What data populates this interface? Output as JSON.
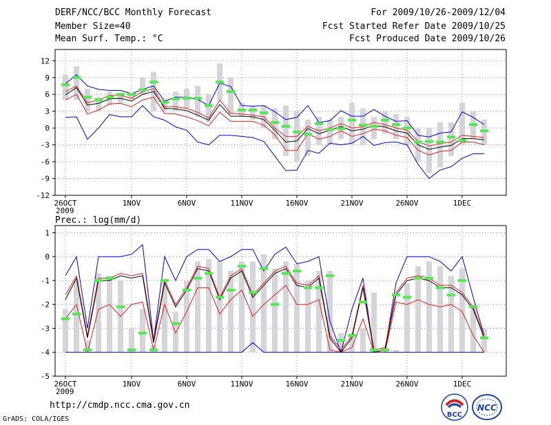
{
  "header": {
    "title": "DERF/NCC/BCC Monthly Forecast",
    "member_size": "Member Size=40",
    "variable": "Mean Surf. Temp.: °C",
    "period": "For 2009/10/26-2009/12/04",
    "started": "Fcst Started Refer Date 2009/10/25",
    "produced": "Fcst Produced Date 2009/10/26"
  },
  "footer": {
    "url": "http://cmdp.ncc.cma.gov.cn",
    "grads": "GrADS: COLA/IGES",
    "logo_bcc": "BCC",
    "logo_ncc": "NCC"
  },
  "colors": {
    "box": "#d3d5d8",
    "green": "#55e855",
    "mean": "#000000",
    "spread_inner": "#e02020",
    "spread_outer": "#0000cc",
    "grid": "#888888"
  },
  "chart_data": [
    {
      "type": "line",
      "title": "Mean Surf. Temp.: °C",
      "ylim": [
        -12,
        14
      ],
      "yticks": [
        12,
        9,
        6,
        3,
        0,
        -3,
        -6,
        -9,
        -12
      ],
      "xticks": [
        {
          "day": 0,
          "label": "26OCT",
          "sub": "2009"
        },
        {
          "day": 6,
          "label": "1NOV"
        },
        {
          "day": 11,
          "label": "6NOV"
        },
        {
          "day": 16,
          "label": "11NOV"
        },
        {
          "day": 21,
          "label": "16NOV"
        },
        {
          "day": 26,
          "label": "21NOV"
        },
        {
          "day": 31,
          "label": "26NOV"
        },
        {
          "day": 36,
          "label": "1DEC"
        }
      ],
      "series": [
        {
          "name": "box_high",
          "values": [
            9.5,
            11,
            7,
            5.5,
            6.5,
            6,
            6,
            9,
            10,
            5,
            6.5,
            7,
            7.5,
            6,
            11.5,
            9,
            4.5,
            4,
            4,
            3.5,
            4,
            3,
            1.5,
            2,
            1.5,
            2,
            4.5,
            3.5,
            2,
            3,
            2.5,
            2,
            0,
            0,
            1,
            1,
            4.5,
            3,
            1.5
          ]
        },
        {
          "name": "box_low",
          "values": [
            5,
            5,
            3,
            3,
            4,
            4.5,
            5,
            6,
            3,
            3,
            3,
            3.5,
            2,
            1,
            5,
            2.5,
            2,
            1.5,
            0,
            -2,
            -5,
            -6,
            -5,
            -3,
            -3,
            -2,
            -3,
            -3,
            -2,
            -1,
            -2,
            -3,
            -6,
            -8,
            -7,
            -5,
            -3,
            -2,
            -3
          ]
        },
        {
          "name": "ensemble_mean_green",
          "values": [
            7.7,
            9,
            5.5,
            5,
            5.5,
            6,
            6,
            6.8,
            8.2,
            4.6,
            5.2,
            5.3,
            5.3,
            4,
            8.2,
            6.5,
            3.2,
            3.2,
            2.7,
            1,
            0.3,
            -0.7,
            -1.1,
            0.8,
            -0.3,
            -0.1,
            1.4,
            0.5,
            0.3,
            1.4,
            0.6,
            0,
            -2.5,
            -2.4,
            -2.5,
            -1.6,
            -2.2,
            0.6,
            -0.5
          ]
        },
        {
          "name": "mean_black",
          "values": [
            5.9,
            7.2,
            4.1,
            4.4,
            5.2,
            5.3,
            4.8,
            6,
            6.5,
            3.5,
            3.4,
            3.1,
            2.3,
            1.4,
            4.2,
            2.1,
            2.1,
            2,
            1.5,
            -0.4,
            -2.5,
            -2.3,
            -0.1,
            -1,
            -0.4,
            0.3,
            -0.5,
            -0.2,
            0.5,
            0.2,
            -0.5,
            -0.9,
            -3,
            -3.8,
            -3.4,
            -3.1,
            -1.9,
            -1.9,
            -2.1
          ]
        },
        {
          "name": "inner_high_red",
          "values": [
            6.5,
            7.5,
            4.5,
            5,
            5.8,
            5.8,
            5.3,
            6.5,
            7,
            3.8,
            3.8,
            3.5,
            2.8,
            1.8,
            5,
            2.6,
            2.5,
            2.3,
            2,
            0,
            -1.5,
            -1.5,
            0.3,
            -0.5,
            0,
            0.8,
            0,
            0.2,
            1,
            0.6,
            0,
            -0.4,
            -2.4,
            -3.2,
            -2.8,
            -2.5,
            -1.3,
            -1.5,
            -1.7
          ]
        },
        {
          "name": "inner_low_red",
          "values": [
            5,
            6,
            2.5,
            3.2,
            4.3,
            4.4,
            3.8,
            5,
            5.5,
            2.6,
            2.5,
            2,
            1.3,
            0.4,
            2.8,
            1.2,
            1.2,
            1.2,
            0.5,
            -1.2,
            -4,
            -4,
            -1,
            -2,
            -1.5,
            -0.5,
            -1.5,
            -1,
            -0.2,
            -0.5,
            -1.3,
            -1.7,
            -4,
            -4.8,
            -4.2,
            -4,
            -2.5,
            -2.5,
            -3
          ]
        },
        {
          "name": "outer_high_blue",
          "values": [
            7.9,
            9.5,
            7.5,
            6.9,
            6.7,
            6.7,
            6.1,
            6.9,
            7.5,
            4.8,
            5.5,
            5.5,
            5.1,
            4,
            8,
            7.4,
            4,
            3.9,
            4,
            2.9,
            1.5,
            1.9,
            4,
            1,
            1.3,
            3.1,
            2.1,
            2.1,
            3.3,
            2.1,
            1.2,
            1.3,
            -1.3,
            -1.6,
            -0.9,
            -0.7,
            2.9,
            1.9,
            0.6
          ]
        },
        {
          "name": "outer_low_blue",
          "values": [
            1.9,
            2,
            -2,
            0,
            2.4,
            2,
            2,
            4,
            2,
            1.4,
            0.2,
            -0.4,
            -2.5,
            -3,
            -1.3,
            -1.3,
            -1.5,
            -1.7,
            -2.4,
            -5,
            -7.6,
            -7.5,
            -4,
            -4.5,
            -2.7,
            -3,
            -2.7,
            -1.5,
            -3.1,
            -2.6,
            -2.5,
            -3,
            -6.5,
            -9,
            -7.5,
            -6.9,
            -5.4,
            -4.6,
            -4.6
          ]
        }
      ]
    },
    {
      "type": "line",
      "title": "Prec.: log(mm/d)",
      "ylim": [
        -5,
        1.3
      ],
      "yticks": [
        1,
        0,
        -1,
        -2,
        -3,
        -4,
        -5
      ],
      "xticks": [
        {
          "day": 0,
          "label": "26OCT",
          "sub": "2009"
        },
        {
          "day": 6,
          "label": "1NOV"
        },
        {
          "day": 11,
          "label": "6NOV"
        },
        {
          "day": 16,
          "label": "11NOV"
        },
        {
          "day": 21,
          "label": "16NOV"
        },
        {
          "day": 26,
          "label": "21NOV"
        },
        {
          "day": 31,
          "label": "26NOV"
        },
        {
          "day": 36,
          "label": "1DEC"
        }
      ],
      "series": [
        {
          "name": "box_high",
          "values": [
            -2.2,
            -1,
            -3.5,
            -0.7,
            -0.8,
            -1,
            -3,
            -2.2,
            -3.7,
            -1,
            -2.3,
            -1,
            -0.2,
            -0.1,
            -0.2,
            -0.6,
            -0.2,
            -0.2,
            0.1,
            -0.5,
            -0.2,
            -0.3,
            -1,
            -0.6,
            -0.6,
            -3.2,
            -3.2,
            -3,
            -1.5,
            -3.9,
            -3.9,
            -1.1,
            -0.4,
            -0.2,
            -0.4,
            -0.8,
            -0.5,
            -2,
            -3
          ]
        },
        {
          "name": "box_low",
          "values": [
            -4,
            -4,
            -4,
            -4,
            -4,
            -4,
            -4,
            -4,
            -4,
            -4,
            -4,
            -4,
            -4,
            -4,
            -4,
            -4,
            -4,
            -4,
            -4,
            -4,
            -4,
            -4,
            -4,
            -4,
            -4,
            -4,
            -4,
            -4,
            -4,
            -4,
            -4,
            -4,
            -4,
            -4,
            -4,
            -4,
            -4,
            -4,
            -4
          ]
        },
        {
          "name": "ensemble_mean_green",
          "values": [
            -2.6,
            -2.4,
            -3.9,
            -1,
            -0.9,
            -2.1,
            -3.9,
            -3.2,
            -3.9,
            -1,
            -2.8,
            -1.4,
            -0.9,
            -0.7,
            -1.7,
            -1.4,
            -0.4,
            -1.5,
            -0.5,
            -2,
            -0.7,
            -0.6,
            -1.3,
            -1.3,
            -0.8,
            -3.5,
            -3.3,
            -1.9,
            -3.9,
            -3.9,
            -1.6,
            -1.7,
            -0.9,
            -0.9,
            -1.3,
            -1.6,
            -1,
            -2.1,
            -3.4
          ]
        },
        {
          "name": "mean_black",
          "values": [
            -1.8,
            -0.9,
            -3.4,
            -1,
            -1,
            -0.8,
            -0.9,
            -0.8,
            -3.6,
            -1.1,
            -2.1,
            -1.4,
            -0.5,
            -0.6,
            -1.8,
            -0.9,
            -0.6,
            -1.7,
            -1.2,
            -0.7,
            -0.5,
            -1.2,
            -1.3,
            -0.9,
            -3.4,
            -4,
            -3.4,
            -1.3,
            -4,
            -3.9,
            -1.6,
            -1,
            -0.9,
            -1,
            -1.3,
            -1.3,
            -1.6,
            -2.2,
            -3.4
          ]
        },
        {
          "name": "inner_high_red",
          "values": [
            -1.6,
            -0.8,
            -3.3,
            -0.9,
            -0.9,
            -0.7,
            -0.8,
            -0.7,
            -3.5,
            -1,
            -2,
            -1.3,
            -0.4,
            -0.5,
            -1.7,
            -0.8,
            -0.5,
            -1.6,
            -1.1,
            -0.6,
            -0.4,
            -1.1,
            -1.2,
            -0.8,
            -3.3,
            -3.9,
            -3.3,
            -1.2,
            -3.9,
            -3.8,
            -1.5,
            -0.9,
            -0.8,
            -0.9,
            -1.2,
            -1.2,
            -1.5,
            -2.1,
            -3.3
          ]
        },
        {
          "name": "inner_low_red",
          "values": [
            -2.6,
            -2,
            -4,
            -2.2,
            -2,
            -2.5,
            -2,
            -1.9,
            -3.9,
            -2,
            -3.2,
            -2.3,
            -1.3,
            -1.3,
            -2.4,
            -1.8,
            -1.4,
            -2.5,
            -2,
            -1.6,
            -1.2,
            -2,
            -2,
            -1.8,
            -3.9,
            -4,
            -3.8,
            -2.6,
            -4,
            -4,
            -1.9,
            -2,
            -1.8,
            -2,
            -2.1,
            -2,
            -2.3,
            -3.3,
            -4
          ]
        },
        {
          "name": "outer_high_blue",
          "values": [
            -0.8,
            0,
            -3,
            0,
            0,
            0,
            0.1,
            0.5,
            -3.5,
            0,
            -1,
            0,
            0.3,
            0.3,
            -0.2,
            0,
            0.3,
            0.3,
            -0.6,
            0.1,
            0.4,
            -0.3,
            -0.2,
            0,
            -2.7,
            -4,
            -2.2,
            -0.9,
            -4,
            -3.9,
            -1.1,
            0,
            0,
            0,
            -0.2,
            -0.6,
            0,
            -1.7,
            -3.3
          ]
        },
        {
          "name": "outer_low_blue",
          "values": [
            -4,
            -4,
            -4,
            -4,
            -4,
            -4,
            -4,
            -4,
            -4,
            -4,
            -4,
            -4,
            -4,
            -4,
            -4,
            -4,
            -4,
            -3.6,
            -4,
            -4,
            -4,
            -4,
            -4,
            -4,
            -4,
            -4,
            -4,
            -4,
            -4,
            -4,
            -4,
            -4,
            -4,
            -4,
            -4,
            -4,
            -4,
            -4,
            -4
          ]
        }
      ]
    }
  ]
}
